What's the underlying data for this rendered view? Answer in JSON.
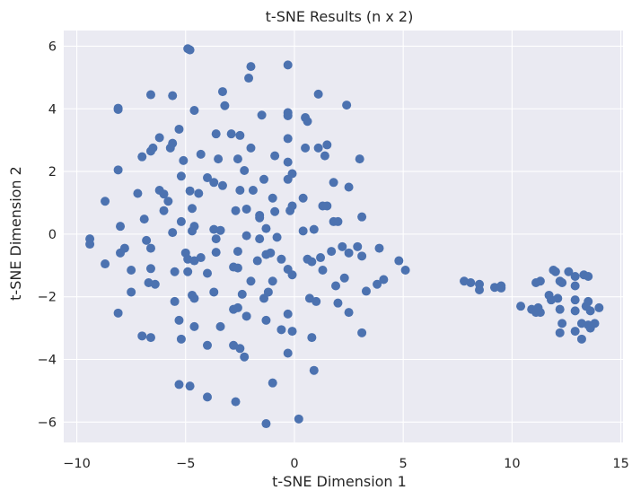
{
  "chart_data": {
    "type": "scatter",
    "title": "t-SNE Results (n x 2)",
    "xlabel": "t-SNE Dimension 1",
    "ylabel": "t-SNE Dimension 2",
    "xlim": [
      -10.6,
      15.1
    ],
    "ylim": [
      -6.65,
      6.5
    ],
    "xticks": [
      -10,
      -5,
      0,
      5,
      10,
      15
    ],
    "yticks": [
      -6,
      -4,
      -2,
      0,
      2,
      4,
      6
    ],
    "grid": true,
    "marker_color": "#4c72b0",
    "background_color": "#eaeaf2",
    "grid_color": "#ffffff",
    "points": [
      [
        -4.9,
        5.92
      ],
      [
        -4.8,
        5.88
      ],
      [
        -2.0,
        5.35
      ],
      [
        -0.3,
        5.4
      ],
      [
        -2.1,
        4.98
      ],
      [
        -6.6,
        4.45
      ],
      [
        -5.6,
        4.42
      ],
      [
        -3.3,
        4.55
      ],
      [
        1.1,
        4.47
      ],
      [
        -8.1,
        4.02
      ],
      [
        -8.1,
        3.98
      ],
      [
        -4.6,
        3.95
      ],
      [
        -3.2,
        4.1
      ],
      [
        2.4,
        4.12
      ],
      [
        -1.5,
        3.8
      ],
      [
        -0.3,
        3.88
      ],
      [
        -0.3,
        3.78
      ],
      [
        0.5,
        3.72
      ],
      [
        0.6,
        3.6
      ],
      [
        -5.3,
        3.35
      ],
      [
        -3.6,
        3.2
      ],
      [
        -2.9,
        3.2
      ],
      [
        -2.5,
        3.15
      ],
      [
        -6.2,
        3.08
      ],
      [
        -0.3,
        3.05
      ],
      [
        -5.6,
        2.9
      ],
      [
        -6.5,
        2.75
      ],
      [
        -5.7,
        2.75
      ],
      [
        -6.6,
        2.65
      ],
      [
        -2.0,
        2.75
      ],
      [
        0.5,
        2.75
      ],
      [
        1.1,
        2.75
      ],
      [
        1.5,
        2.85
      ],
      [
        -7.0,
        2.47
      ],
      [
        -4.3,
        2.55
      ],
      [
        -3.5,
        2.4
      ],
      [
        -2.6,
        2.4
      ],
      [
        -0.9,
        2.5
      ],
      [
        1.4,
        2.5
      ],
      [
        -5.1,
        2.35
      ],
      [
        -0.3,
        2.3
      ],
      [
        3.0,
        2.4
      ],
      [
        -8.1,
        2.05
      ],
      [
        -5.2,
        1.85
      ],
      [
        -2.3,
        2.03
      ],
      [
        -0.1,
        1.93
      ],
      [
        -4.0,
        1.8
      ],
      [
        -3.7,
        1.65
      ],
      [
        -3.3,
        1.55
      ],
      [
        -1.4,
        1.75
      ],
      [
        -0.3,
        1.75
      ],
      [
        1.8,
        1.65
      ],
      [
        2.5,
        1.5
      ],
      [
        -6.2,
        1.4
      ],
      [
        -4.8,
        1.38
      ],
      [
        -4.4,
        1.3
      ],
      [
        -2.5,
        1.4
      ],
      [
        -1.9,
        1.4
      ],
      [
        -6.0,
        1.28
      ],
      [
        -7.2,
        1.3
      ],
      [
        -1.0,
        1.15
      ],
      [
        0.4,
        1.15
      ],
      [
        -5.8,
        1.05
      ],
      [
        -8.7,
        1.05
      ],
      [
        1.3,
        0.9
      ],
      [
        1.5,
        0.9
      ],
      [
        -4.7,
        0.82
      ],
      [
        -2.7,
        0.75
      ],
      [
        -2.2,
        0.8
      ],
      [
        -6.0,
        0.75
      ],
      [
        -0.1,
        0.9
      ],
      [
        -0.2,
        0.75
      ],
      [
        -6.9,
        0.48
      ],
      [
        -5.2,
        0.4
      ],
      [
        -1.6,
        0.6
      ],
      [
        -0.9,
        0.72
      ],
      [
        1.8,
        0.4
      ],
      [
        2.0,
        0.4
      ],
      [
        3.1,
        0.55
      ],
      [
        -8.0,
        0.25
      ],
      [
        -4.6,
        0.25
      ],
      [
        -3.7,
        0.15
      ],
      [
        -3.4,
        0.12
      ],
      [
        -1.6,
        0.52
      ],
      [
        -1.3,
        0.18
      ],
      [
        -5.6,
        0.05
      ],
      [
        -4.7,
        0.1
      ],
      [
        -1.6,
        -0.15
      ],
      [
        0.4,
        0.1
      ],
      [
        0.9,
        0.15
      ],
      [
        -9.4,
        -0.15
      ],
      [
        -9.4,
        -0.32
      ],
      [
        -3.6,
        -0.15
      ],
      [
        -2.2,
        -0.05
      ],
      [
        -0.8,
        -0.1
      ],
      [
        -6.8,
        -0.2
      ],
      [
        -7.8,
        -0.45
      ],
      [
        -6.6,
        -0.45
      ],
      [
        2.2,
        -0.4
      ],
      [
        2.9,
        -0.4
      ],
      [
        3.9,
        -0.45
      ],
      [
        -8.0,
        -0.6
      ],
      [
        -5.0,
        -0.6
      ],
      [
        -2.6,
        -0.55
      ],
      [
        -1.3,
        -0.65
      ],
      [
        -1.1,
        -0.6
      ],
      [
        0.6,
        -0.8
      ],
      [
        1.7,
        -0.55
      ],
      [
        2.5,
        -0.6
      ],
      [
        3.1,
        -0.7
      ],
      [
        -4.9,
        -0.8
      ],
      [
        -4.6,
        -0.85
      ],
      [
        -4.3,
        -0.75
      ],
      [
        -3.6,
        -0.58
      ],
      [
        -1.7,
        -0.85
      ],
      [
        -0.6,
        -0.8
      ],
      [
        0.8,
        -0.88
      ],
      [
        1.2,
        -0.75
      ],
      [
        4.8,
        -0.85
      ],
      [
        -8.7,
        -0.95
      ],
      [
        -6.6,
        -1.1
      ],
      [
        -7.5,
        -1.15
      ],
      [
        -2.8,
        -1.05
      ],
      [
        -2.6,
        -1.08
      ],
      [
        -0.3,
        -1.12
      ],
      [
        1.3,
        -1.15
      ],
      [
        5.1,
        -1.15
      ],
      [
        -5.5,
        -1.2
      ],
      [
        -4.9,
        -1.2
      ],
      [
        -4.0,
        -1.25
      ],
      [
        -0.1,
        -1.3
      ],
      [
        2.3,
        -1.4
      ],
      [
        4.1,
        -1.45
      ],
      [
        -6.7,
        -1.55
      ],
      [
        -6.4,
        -1.6
      ],
      [
        -2.0,
        -1.5
      ],
      [
        -1.0,
        -1.5
      ],
      [
        1.9,
        -1.65
      ],
      [
        3.8,
        -1.6
      ],
      [
        7.8,
        -1.5
      ],
      [
        8.1,
        -1.55
      ],
      [
        8.5,
        -1.6
      ],
      [
        8.5,
        -1.78
      ],
      [
        9.2,
        -1.7
      ],
      [
        9.5,
        -1.65
      ],
      [
        9.5,
        -1.72
      ],
      [
        -7.5,
        -1.85
      ],
      [
        -4.7,
        -1.95
      ],
      [
        -3.7,
        -1.85
      ],
      [
        -2.4,
        -1.92
      ],
      [
        -1.2,
        -1.85
      ],
      [
        3.3,
        -1.82
      ],
      [
        -5.5,
        -2.15
      ],
      [
        -4.6,
        -2.05
      ],
      [
        -1.4,
        -2.05
      ],
      [
        0.7,
        -2.05
      ],
      [
        1.0,
        -2.15
      ],
      [
        2.0,
        -2.2
      ],
      [
        -2.8,
        -2.4
      ],
      [
        -2.6,
        -2.35
      ],
      [
        -8.1,
        -2.52
      ],
      [
        -0.3,
        -2.55
      ],
      [
        2.5,
        -2.5
      ],
      [
        -5.3,
        -2.75
      ],
      [
        -3.4,
        -2.95
      ],
      [
        -1.3,
        -2.75
      ],
      [
        -4.6,
        -2.95
      ],
      [
        -2.2,
        -2.62
      ],
      [
        -0.6,
        -3.05
      ],
      [
        -0.1,
        -3.1
      ],
      [
        -7.0,
        -3.25
      ],
      [
        -6.6,
        -3.3
      ],
      [
        -5.2,
        -3.35
      ],
      [
        0.8,
        -3.3
      ],
      [
        3.1,
        -3.15
      ],
      [
        -4.0,
        -3.55
      ],
      [
        -2.8,
        -3.55
      ],
      [
        -2.5,
        -3.65
      ],
      [
        -2.3,
        -3.92
      ],
      [
        -0.3,
        -3.8
      ],
      [
        0.9,
        -4.35
      ],
      [
        -5.3,
        -4.8
      ],
      [
        -4.8,
        -4.85
      ],
      [
        -1.0,
        -4.75
      ],
      [
        -4.0,
        -5.2
      ],
      [
        -2.7,
        -5.35
      ],
      [
        -1.3,
        -6.05
      ],
      [
        0.2,
        -5.9
      ],
      [
        10.4,
        -2.3
      ],
      [
        10.9,
        -2.4
      ],
      [
        11.1,
        -2.5
      ],
      [
        11.3,
        -2.5
      ],
      [
        11.2,
        -2.35
      ],
      [
        11.1,
        -1.55
      ],
      [
        11.3,
        -1.5
      ],
      [
        11.7,
        -1.95
      ],
      [
        11.8,
        -2.1
      ],
      [
        11.9,
        -1.15
      ],
      [
        12.0,
        -1.2
      ],
      [
        12.2,
        -1.5
      ],
      [
        12.1,
        -2.05
      ],
      [
        12.2,
        -2.4
      ],
      [
        12.3,
        -2.85
      ],
      [
        12.2,
        -3.15
      ],
      [
        12.3,
        -1.55
      ],
      [
        12.6,
        -1.2
      ],
      [
        12.9,
        -1.35
      ],
      [
        12.9,
        -1.65
      ],
      [
        12.9,
        -2.1
      ],
      [
        12.9,
        -2.45
      ],
      [
        12.9,
        -3.1
      ],
      [
        13.2,
        -2.85
      ],
      [
        13.2,
        -3.35
      ],
      [
        13.3,
        -1.3
      ],
      [
        13.4,
        -2.3
      ],
      [
        13.5,
        -1.35
      ],
      [
        13.5,
        -2.15
      ],
      [
        13.6,
        -2.45
      ],
      [
        13.5,
        -2.9
      ],
      [
        13.6,
        -3.0
      ],
      [
        13.8,
        -2.85
      ],
      [
        14.0,
        -2.35
      ]
    ]
  }
}
